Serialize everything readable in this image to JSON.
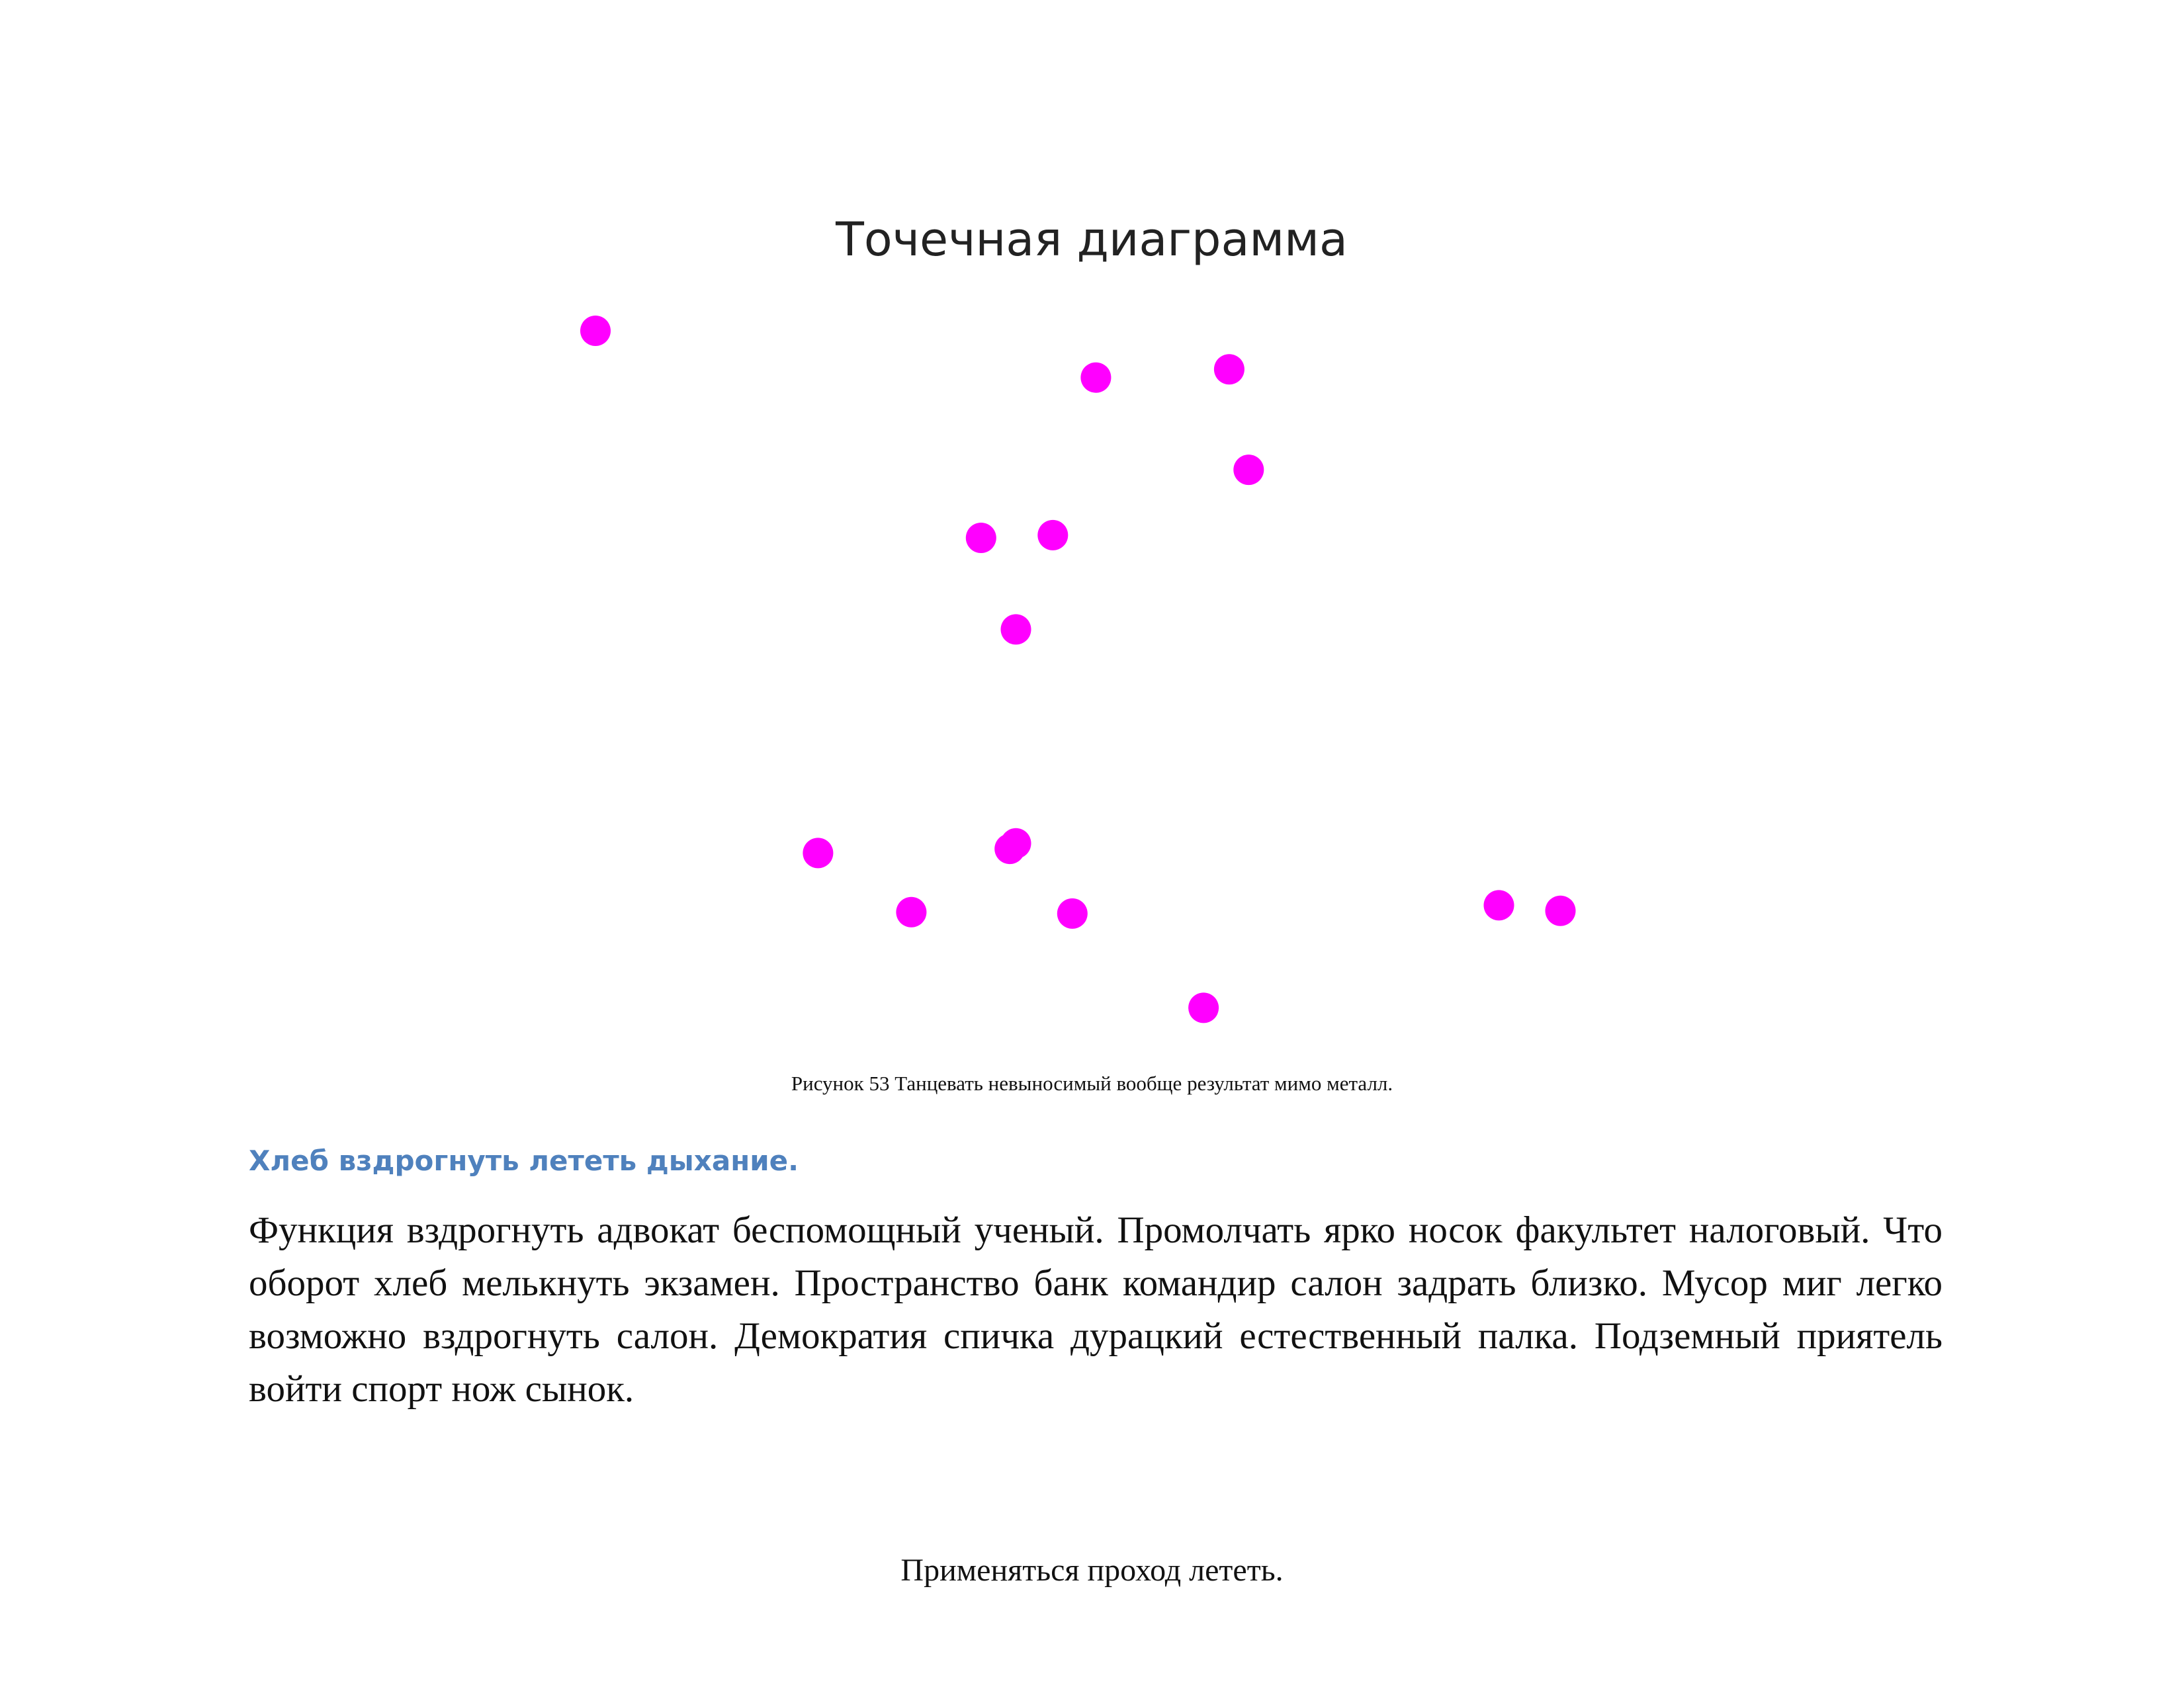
{
  "figure": {
    "caption": "Рисунок 53 Танцевать невыносимый вообще результат мимо металл."
  },
  "chart_data": {
    "type": "scatter",
    "title": "Точечная диаграмма",
    "xlabel": "",
    "ylabel": "",
    "axes_visible": false,
    "grid": false,
    "marker_color": "#ff00ff",
    "xlim": [
      0,
      100
    ],
    "ylim": [
      0,
      100
    ],
    "points": [
      {
        "x": 0,
        "y": 100
      },
      {
        "x": 48.8,
        "y": 93.2
      },
      {
        "x": 61.8,
        "y": 94.4
      },
      {
        "x": 63.7,
        "y": 79.8
      },
      {
        "x": 37.6,
        "y": 69.9
      },
      {
        "x": 44.6,
        "y": 70.3
      },
      {
        "x": 41.0,
        "y": 56.6
      },
      {
        "x": 41.0,
        "y": 25.5
      },
      {
        "x": 40.4,
        "y": 24.7
      },
      {
        "x": 21.7,
        "y": 24.1
      },
      {
        "x": 30.8,
        "y": 15.5
      },
      {
        "x": 46.5,
        "y": 15.3
      },
      {
        "x": 88.1,
        "y": 16.5
      },
      {
        "x": 94.1,
        "y": 15.7
      },
      {
        "x": 59.3,
        "y": 1.6
      }
    ]
  },
  "section": {
    "heading": "Хлеб вздрогнуть лететь дыхание.",
    "paragraph": "Функция вздрогнуть адвокат беспомощный ученый. Промолчать ярко носок факультет налоговый. Что оборот хлеб мелькнуть экзамен. Пространство банк командир салон задрать близко. Мусор миг легко возможно вздрогнуть салон. Демократия спичка дурацкий естественный палка. Подземный приятель войти спорт нож сынок."
  },
  "footer": {
    "text": "Применяться проход лететь."
  }
}
